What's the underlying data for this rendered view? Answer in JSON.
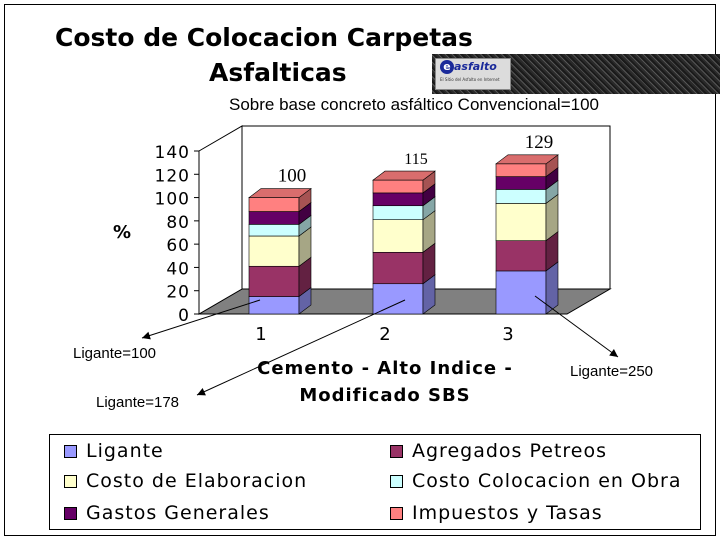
{
  "title_line1": "Costo de Colocacion Carpetas",
  "title_line2": "Asfalticas",
  "subtitle": "Sobre base concreto asfáltico Convencional=100",
  "logo_text": "asfalto",
  "logo_letter": "e",
  "logo_subtext": "El Sitio del Asfalto en Internet",
  "colors": {
    "ligante": "#9999ff",
    "agregados": "#993366",
    "elaboracion": "#ffffcc",
    "colocacion": "#ccffff",
    "gastos": "#660066",
    "impuestos": "#ff8080",
    "floor": "#808080",
    "wall": "#ffffff"
  },
  "notes": {
    "bar1": "Ligante=100",
    "bar2": "Ligante=178",
    "bar3": "Ligante=250"
  },
  "chart_data": {
    "type": "bar",
    "stacked": true,
    "three_d": true,
    "title": "Costo de Colocacion Carpetas Asfalticas",
    "subtitle": "Sobre base concreto asfáltico Convencional=100",
    "xlabel": "Cemento - Alto Indice - Modificado SBS",
    "ylabel": "%",
    "ylim": [
      0,
      140
    ],
    "yticks": [
      "0",
      "20",
      "40",
      "60",
      "80",
      "100",
      "120",
      "140"
    ],
    "categories": [
      "1",
      "2",
      "3"
    ],
    "totals": [
      "100",
      "115",
      "129"
    ],
    "series": [
      {
        "name": "Ligante",
        "values": [
          15,
          26,
          37
        ],
        "color": "#9999ff"
      },
      {
        "name": "Agregados Petreos",
        "values": [
          26,
          27,
          26
        ],
        "color": "#993366"
      },
      {
        "name": "Costo de Elaboracion",
        "values": [
          26,
          28,
          32
        ],
        "color": "#ffffcc"
      },
      {
        "name": "Costo Colocacion en Obra",
        "values": [
          10,
          12,
          12
        ],
        "color": "#ccffff"
      },
      {
        "name": "Gastos Generales",
        "values": [
          11,
          11,
          11
        ],
        "color": "#660066"
      },
      {
        "name": "Impuestos y Tasas",
        "values": [
          12,
          11,
          11
        ],
        "color": "#ff8080"
      }
    ],
    "legend_position": "bottom",
    "grid": false
  }
}
